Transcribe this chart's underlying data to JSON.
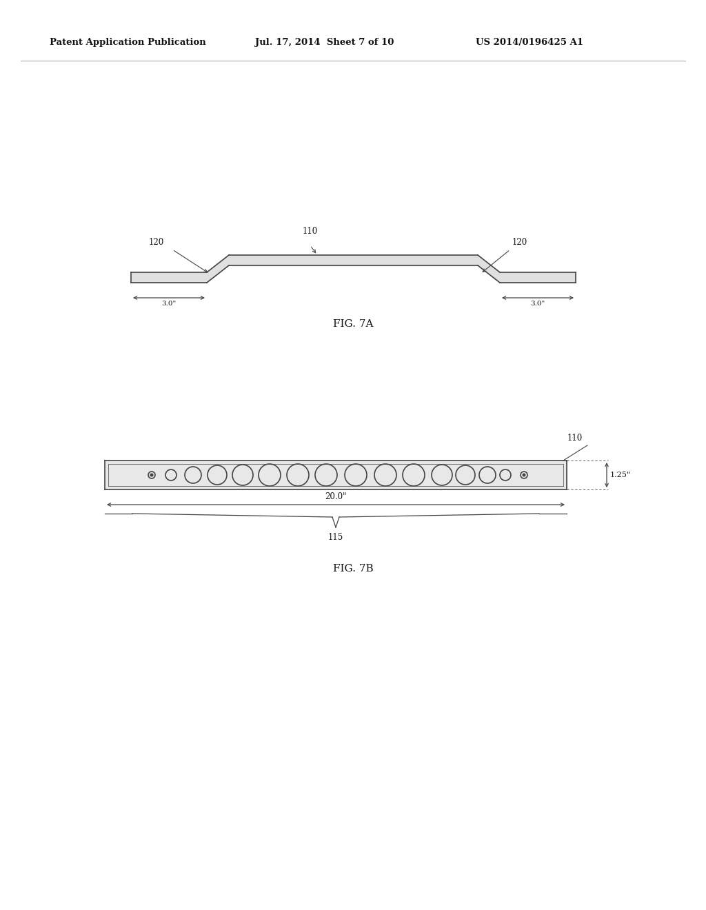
{
  "bg_color": "#ffffff",
  "line_color": "#444444",
  "header_left": "Patent Application Publication",
  "header_mid": "Jul. 17, 2014  Sheet 7 of 10",
  "header_right": "US 2014/0196425 A1",
  "fig7a_label": "FIG. 7A",
  "fig7b_label": "FIG. 7B",
  "label_110_a": "110",
  "label_120_a": "120",
  "label_120_b": "120",
  "label_3_left": "3.0\"",
  "label_3_right": "3.0\"",
  "label_110_b": "110",
  "label_115": "115",
  "label_20": "20.0\"",
  "label_125": "1.25\""
}
